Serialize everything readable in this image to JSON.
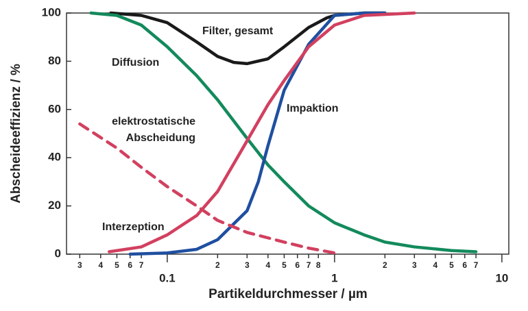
{
  "chart_data": {
    "type": "line",
    "xlabel": "Partikeldurchmesser / µm",
    "ylabel": "Abscheideeffizienz / %",
    "log_x": true,
    "xlim": [
      0.025,
      11
    ],
    "ylim": [
      0,
      100
    ],
    "xticks": [
      {
        "value": 0.03,
        "label": "3"
      },
      {
        "value": 0.04,
        "label": "4"
      },
      {
        "value": 0.05,
        "label": "5"
      },
      {
        "value": 0.06,
        "label": "6"
      },
      {
        "value": 0.07,
        "label": "7"
      },
      0.1,
      {
        "value": 0.2,
        "label": "2"
      },
      {
        "value": 0.3,
        "label": "3"
      },
      {
        "value": 0.4,
        "label": "4"
      },
      {
        "value": 0.5,
        "label": "5"
      },
      {
        "value": 0.6,
        "label": "6"
      },
      {
        "value": 0.7,
        "label": "7"
      },
      {
        "value": 0.8,
        "label": "8"
      },
      1,
      {
        "value": 2,
        "label": "2"
      },
      {
        "value": 3,
        "label": "3"
      },
      {
        "value": 4,
        "label": "4"
      },
      {
        "value": 5,
        "label": "5"
      },
      {
        "value": 6,
        "label": "6"
      },
      {
        "value": 7,
        "label": "7"
      },
      10
    ],
    "yticks": [
      0,
      20,
      40,
      60,
      80,
      100
    ],
    "series": [
      {
        "name": "Filter, gesamt",
        "color": "#1a1a1a",
        "x": [
          0.046,
          0.07,
          0.1,
          0.15,
          0.2,
          0.25,
          0.3,
          0.4,
          0.5,
          0.7,
          0.9,
          1,
          1.5,
          2
        ],
        "values": [
          100,
          99,
          96,
          88,
          82,
          79.5,
          79,
          81,
          86,
          94,
          98,
          99,
          100,
          100
        ]
      },
      {
        "name": "Diffusion",
        "color": "#138a5c",
        "x": [
          0.035,
          0.05,
          0.07,
          0.1,
          0.15,
          0.2,
          0.3,
          0.4,
          0.5,
          0.7,
          1,
          1.5,
          2,
          3,
          5,
          7
        ],
        "values": [
          100,
          99,
          95,
          86,
          74,
          64,
          48,
          37,
          30,
          20,
          13,
          8,
          5,
          3,
          1.5,
          1
        ]
      },
      {
        "name": "Impaktion",
        "color": "#1f4fa0",
        "x": [
          0.06,
          0.1,
          0.15,
          0.2,
          0.3,
          0.35,
          0.4,
          0.5,
          0.7,
          1,
          1.5,
          2
        ],
        "values": [
          0,
          0.5,
          2,
          6,
          18,
          30,
          45,
          68,
          87,
          99,
          100,
          100
        ]
      },
      {
        "name": "elektrostatische Abscheidung",
        "color": "#d2405f",
        "dashed": true,
        "x": [
          0.03,
          0.05,
          0.07,
          0.1,
          0.15,
          0.2,
          0.3,
          0.5,
          0.7,
          1
        ],
        "values": [
          54,
          44,
          36,
          28,
          20,
          14,
          9,
          5,
          2.5,
          0.5
        ]
      },
      {
        "name": "Interzeption",
        "color": "#d2405f",
        "x": [
          0.045,
          0.07,
          0.1,
          0.15,
          0.2,
          0.3,
          0.4,
          0.5,
          0.7,
          1,
          1.5,
          3
        ],
        "values": [
          1,
          3,
          8,
          16,
          26,
          47,
          62,
          72,
          86,
          95,
          99,
          100
        ]
      }
    ]
  }
}
